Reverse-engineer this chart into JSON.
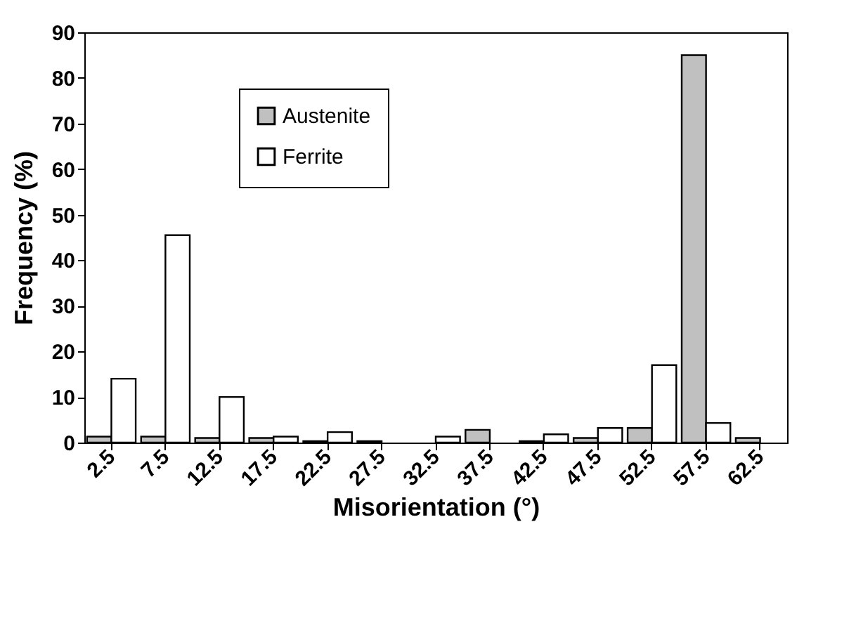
{
  "chart_data": {
    "type": "bar",
    "xlabel": "Misorientation (°)",
    "ylabel": "Frequency (%)",
    "categories": [
      "2.5",
      "7.5",
      "12.5",
      "17.5",
      "22.5",
      "27.5",
      "32.5",
      "37.5",
      "42.5",
      "47.5",
      "52.5",
      "57.5",
      "62.5"
    ],
    "series": [
      {
        "name": "Austenite",
        "color": "#c0c0c0",
        "values": [
          1.3,
          1.3,
          1,
          1,
          0.3,
          0.3,
          null,
          2.8,
          0.3,
          1,
          3.2,
          85,
          1
        ]
      },
      {
        "name": "Ferrite",
        "color": "#ffffff",
        "values": [
          14,
          45.5,
          10,
          1.3,
          2.3,
          null,
          1.3,
          null,
          1.8,
          3.2,
          17,
          4.3,
          null
        ]
      }
    ],
    "ylim": [
      0,
      90
    ],
    "yticks": [
      0,
      10,
      20,
      30,
      40,
      50,
      60,
      70,
      80,
      90
    ],
    "grid": false,
    "legend": "top left"
  }
}
